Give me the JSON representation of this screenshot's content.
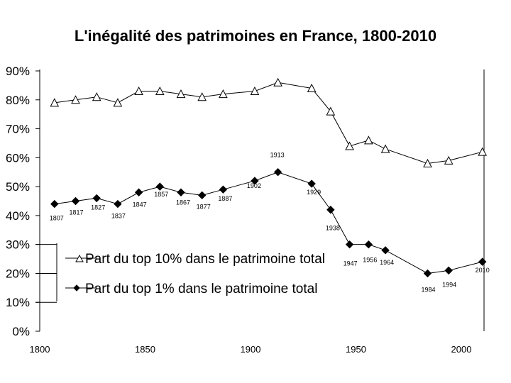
{
  "chart_data": {
    "type": "line",
    "title": "L'inégalité des patrimoines en France, 1800-2010",
    "xlabel": "",
    "ylabel": "",
    "xlim": [
      1800,
      2010
    ],
    "ylim": [
      0,
      90
    ],
    "x_ticks": [
      "1800",
      "1850",
      "1900",
      "1950",
      "2000"
    ],
    "y_ticks": [
      "0%",
      "10%",
      "20%",
      "30%",
      "40%",
      "50%",
      "60%",
      "70%",
      "80%",
      "90%"
    ],
    "grid": false,
    "legend_position": "lower-left",
    "series": [
      {
        "name": "Part du top 10% dans le patrimoine total",
        "marker": "open-triangle",
        "x": [
          1807,
          1817,
          1827,
          1837,
          1847,
          1857,
          1867,
          1877,
          1887,
          1902,
          1913,
          1929,
          1938,
          1947,
          1956,
          1964,
          1984,
          1994,
          2010
        ],
        "values": [
          79,
          80,
          81,
          79,
          83,
          83,
          82,
          81,
          82,
          83,
          86,
          84,
          76,
          64,
          66,
          63,
          58,
          59,
          62
        ]
      },
      {
        "name": "Part du top 1% dans le patrimoine total",
        "marker": "filled-diamond",
        "x": [
          1807,
          1817,
          1827,
          1837,
          1847,
          1857,
          1867,
          1877,
          1887,
          1902,
          1913,
          1929,
          1938,
          1947,
          1956,
          1964,
          1984,
          1994,
          2010
        ],
        "values": [
          44,
          45,
          46,
          44,
          48,
          50,
          48,
          47,
          49,
          52,
          55,
          51,
          42,
          30,
          30,
          28,
          20,
          21,
          24
        ],
        "point_labels": [
          "1807",
          "1817",
          "1827",
          "1837",
          "1847",
          "1857",
          "1867",
          "1877",
          "1887",
          "1902",
          "1913",
          "1929",
          "1938",
          "1947",
          "1956",
          "1964",
          "1984",
          "1994",
          "2010"
        ]
      }
    ]
  }
}
